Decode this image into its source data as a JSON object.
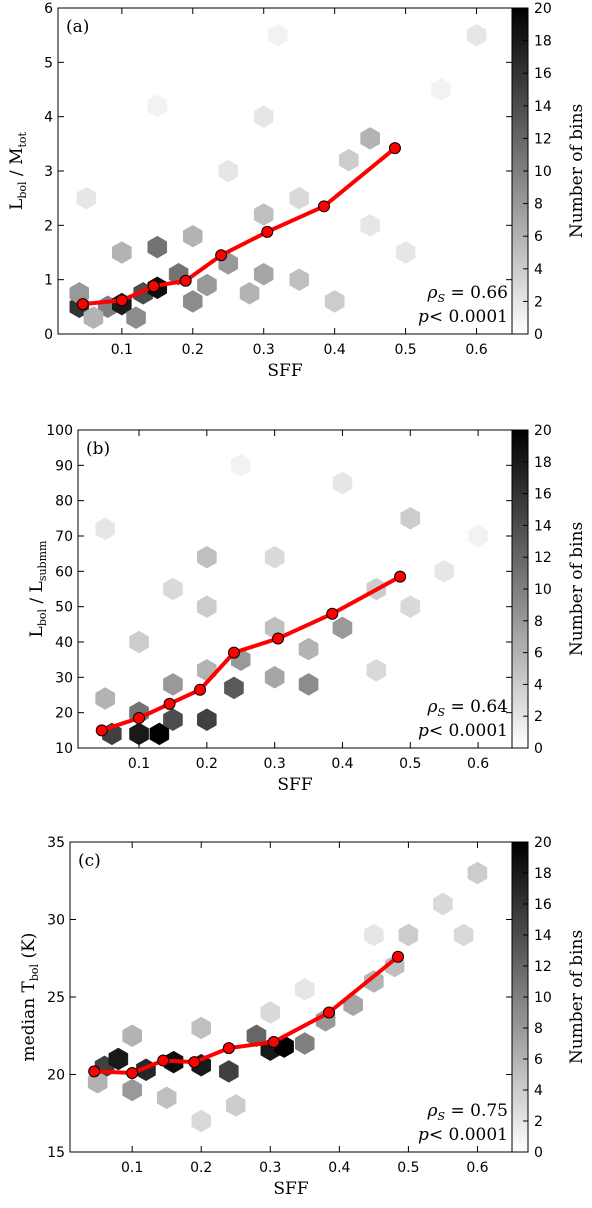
{
  "chart_data": [
    {
      "type": "hexbin",
      "panel_label": "(a)",
      "xlabel": "SFF",
      "ylabel": [
        "L",
        "bol",
        " / M",
        "tot"
      ],
      "stats": [
        [
          "ρ",
          "S",
          " = 0.66"
        ],
        [
          "p",
          "< 0.0001"
        ]
      ],
      "xlim": [
        0.01,
        0.65
      ],
      "xticks": [
        0.1,
        0.2,
        0.3,
        0.4,
        0.5,
        0.6
      ],
      "ylim": [
        0,
        6
      ],
      "yticks": [
        0,
        1,
        2,
        3,
        4,
        5,
        6
      ],
      "colorbar": {
        "label": "Number of bins",
        "clim": [
          0,
          20
        ],
        "ticks": [
          0,
          2,
          4,
          6,
          8,
          10,
          12,
          14,
          16,
          18,
          20
        ]
      },
      "hexbins": {
        "x": [
          0.04,
          0.08,
          0.1,
          0.13,
          0.15,
          0.06,
          0.04,
          0.12,
          0.2,
          0.18,
          0.22,
          0.25,
          0.28,
          0.3,
          0.35,
          0.4,
          0.1,
          0.15,
          0.2,
          0.3,
          0.35,
          0.25,
          0.42,
          0.45,
          0.5,
          0.3,
          0.55,
          0.15,
          0.6,
          0.05,
          0.45,
          0.32
        ],
        "y": [
          0.5,
          0.5,
          0.55,
          0.75,
          0.85,
          0.3,
          0.75,
          0.3,
          0.6,
          1.1,
          0.9,
          1.3,
          0.75,
          1.1,
          1.0,
          0.6,
          1.5,
          1.6,
          1.8,
          2.2,
          2.5,
          3.0,
          3.2,
          2.0,
          1.5,
          4.0,
          4.5,
          4.2,
          5.5,
          2.5,
          3.6,
          5.5
        ],
        "counts": [
          16,
          10,
          18,
          14,
          19,
          6,
          8,
          9,
          9,
          11,
          8,
          8,
          6,
          7,
          5,
          4,
          6,
          11,
          6,
          5,
          3,
          2,
          4,
          2,
          2,
          2,
          1,
          1,
          2,
          2,
          6,
          1
        ]
      },
      "series": [
        {
          "color": "#ff0000",
          "x": [
            0.045,
            0.1,
            0.145,
            0.19,
            0.24,
            0.305,
            0.385,
            0.485
          ],
          "values": [
            0.55,
            0.62,
            0.88,
            0.98,
            1.45,
            1.88,
            2.35,
            3.42
          ]
        }
      ]
    },
    {
      "type": "hexbin",
      "panel_label": "(b)",
      "xlabel": "SFF",
      "ylabel": [
        "L",
        "bol",
        " / L",
        "submm"
      ],
      "stats": [
        [
          "ρ",
          "S",
          " = 0.64"
        ],
        [
          "p",
          "< 0.0001"
        ]
      ],
      "xlim": [
        0.01,
        0.65
      ],
      "xticks": [
        0.1,
        0.2,
        0.3,
        0.4,
        0.5,
        0.6
      ],
      "ylim": [
        10,
        100
      ],
      "yticks": [
        10,
        20,
        30,
        40,
        50,
        60,
        70,
        80,
        90,
        100
      ],
      "colorbar": {
        "label": "Number of bins",
        "clim": [
          0,
          20
        ],
        "ticks": [
          0,
          2,
          4,
          6,
          8,
          10,
          12,
          14,
          16,
          18,
          20
        ]
      },
      "hexbins": {
        "x": [
          0.06,
          0.1,
          0.13,
          0.1,
          0.15,
          0.2,
          0.24,
          0.05,
          0.15,
          0.2,
          0.25,
          0.3,
          0.35,
          0.4,
          0.3,
          0.2,
          0.1,
          0.35,
          0.45,
          0.5,
          0.55,
          0.45,
          0.3,
          0.2,
          0.05,
          0.4,
          0.25,
          0.6,
          0.5,
          0.15
        ],
        "y": [
          14,
          14,
          14,
          20,
          18,
          18,
          27,
          24,
          28,
          32,
          35,
          30,
          38,
          44,
          44,
          50,
          40,
          28,
          32,
          50,
          60,
          55,
          64,
          64,
          72,
          85,
          90,
          70,
          75,
          55
        ],
        "counts": [
          15,
          18,
          20,
          11,
          14,
          15,
          13,
          6,
          8,
          6,
          8,
          7,
          6,
          8,
          5,
          4,
          4,
          9,
          3,
          3,
          2,
          4,
          3,
          5,
          2,
          2,
          1,
          1,
          4,
          3
        ]
      },
      "series": [
        {
          "color": "#ff0000",
          "x": [
            0.045,
            0.1,
            0.145,
            0.19,
            0.24,
            0.305,
            0.385,
            0.485
          ],
          "values": [
            15,
            18.5,
            22.5,
            26.5,
            37,
            41,
            48,
            58.5
          ]
        }
      ]
    },
    {
      "type": "hexbin",
      "panel_label": "(c)",
      "xlabel": "SFF",
      "ylabel": [
        "median T",
        "bol",
        " (K)"
      ],
      "stats": [
        [
          "ρ",
          "S",
          " = 0.75"
        ],
        [
          "p",
          "< 0.0001"
        ]
      ],
      "xlim": [
        0.01,
        0.65
      ],
      "xticks": [
        0.1,
        0.2,
        0.3,
        0.4,
        0.5,
        0.6
      ],
      "ylim": [
        15,
        35
      ],
      "yticks": [
        15,
        20,
        25,
        30,
        35
      ],
      "colorbar": {
        "label": "Number of bins",
        "clim": [
          0,
          20
        ],
        "ticks": [
          0,
          2,
          4,
          6,
          8,
          10,
          12,
          14,
          16,
          18,
          20
        ]
      },
      "hexbins": {
        "x": [
          0.06,
          0.08,
          0.12,
          0.16,
          0.2,
          0.24,
          0.3,
          0.32,
          0.05,
          0.1,
          0.15,
          0.2,
          0.28,
          0.35,
          0.38,
          0.42,
          0.45,
          0.48,
          0.5,
          0.55,
          0.6,
          0.1,
          0.2,
          0.3,
          0.35,
          0.45,
          0.58,
          0.25
        ],
        "y": [
          20.5,
          21,
          20.3,
          20.8,
          20.6,
          20.2,
          21.6,
          21.8,
          19.5,
          19,
          18.5,
          17,
          22.5,
          22,
          23.5,
          24.5,
          26,
          27,
          29,
          31,
          33,
          22.5,
          23,
          24,
          25.5,
          29,
          29,
          18
        ],
        "counts": [
          15,
          18,
          17,
          19,
          18,
          15,
          18,
          20,
          6,
          8,
          5,
          3,
          12,
          10,
          8,
          7,
          6,
          5,
          4,
          3,
          4,
          6,
          5,
          3,
          2,
          2,
          3,
          4
        ]
      },
      "series": [
        {
          "color": "#ff0000",
          "x": [
            0.045,
            0.1,
            0.145,
            0.19,
            0.24,
            0.305,
            0.385,
            0.485
          ],
          "values": [
            20.2,
            20.1,
            20.9,
            20.8,
            21.7,
            22.1,
            24.0,
            27.6
          ]
        }
      ]
    }
  ]
}
